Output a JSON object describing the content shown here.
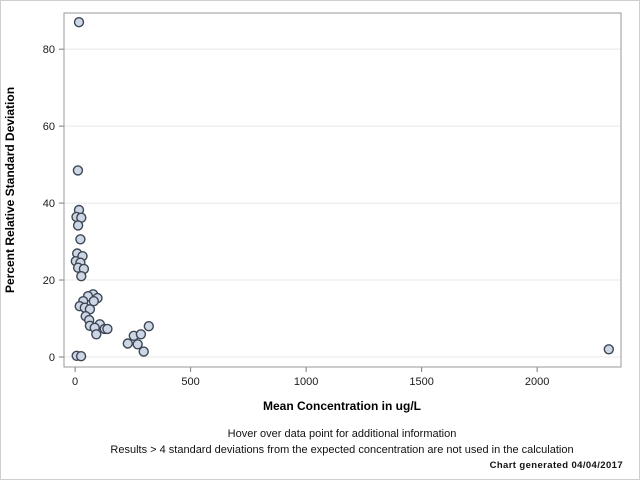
{
  "page": {
    "background": "#ffffff",
    "border_color": "#cfcfcf"
  },
  "chart_data": {
    "type": "scatter",
    "title": "",
    "xlabel": "Mean Concentration in ug/L",
    "ylabel": "Percent Relative Standard Deviation",
    "xticks": [
      0,
      500,
      1000,
      1500,
      2000
    ],
    "yticks": [
      0,
      20,
      40,
      60,
      80
    ],
    "xlim": [
      -48,
      2363
    ],
    "ylim": [
      -2.6,
      89.4
    ],
    "grid": "horizontal-only",
    "legend": "none",
    "marker": {
      "shape": "circle",
      "fill": "#cdd6e4",
      "stroke": "#3d4654",
      "radius": 4.5,
      "stroke_width": 1.4
    },
    "colors": {
      "gridline": "#e8e8e8",
      "plot_border": "#999999",
      "tick": "#7a7a7a",
      "tick_label": "#1a1a1a"
    },
    "points": [
      [
        17,
        87
      ],
      [
        12,
        48.5
      ],
      [
        17,
        38.2
      ],
      [
        6,
        36.4
      ],
      [
        27,
        36.2
      ],
      [
        13,
        34.2
      ],
      [
        23,
        30.6
      ],
      [
        9,
        26.9
      ],
      [
        32,
        26.2
      ],
      [
        3,
        24.9
      ],
      [
        23,
        24.5
      ],
      [
        13,
        23.2
      ],
      [
        38,
        22.9
      ],
      [
        27,
        21.0
      ],
      [
        78,
        16.3
      ],
      [
        56,
        15.8
      ],
      [
        97,
        15.3
      ],
      [
        35,
        14.5
      ],
      [
        81,
        14.5
      ],
      [
        20,
        13.2
      ],
      [
        42,
        12.8
      ],
      [
        64,
        12.4
      ],
      [
        46,
        10.6
      ],
      [
        61,
        9.6
      ],
      [
        107,
        8.5
      ],
      [
        64,
        8.1
      ],
      [
        85,
        7.6
      ],
      [
        128,
        7.3
      ],
      [
        140,
        7.3
      ],
      [
        92,
        5.9
      ],
      [
        7,
        0.3
      ],
      [
        26,
        0.2
      ],
      [
        228,
        3.5
      ],
      [
        254,
        5.5
      ],
      [
        285,
        5.9
      ],
      [
        319,
        8.0
      ],
      [
        271,
        3.3
      ],
      [
        297,
        1.4
      ],
      [
        2310,
        2
      ]
    ],
    "annotations": {
      "hover_note": "Hover over data point for additional information",
      "results_note": "Results > 4 standard deviations from the expected concentration are not used in the calculation",
      "generated_note": "Chart generated 04/04/2017"
    }
  }
}
